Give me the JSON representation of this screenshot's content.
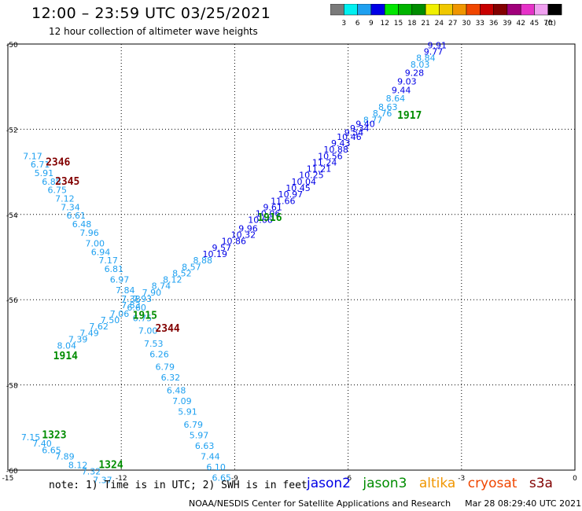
{
  "header": {
    "title": "12:00 – 23:59 UTC 03/25/2021",
    "subtitle": "12 hour collection of altimeter wave heights"
  },
  "colorbar": {
    "labels": [
      "3",
      "6",
      "9",
      "12",
      "15",
      "18",
      "21",
      "24",
      "27",
      "30",
      "33",
      "36",
      "39",
      "42",
      "45",
      "70"
    ],
    "unit": "(ft)",
    "colors": [
      "#7a7a7a",
      "#00f0f0",
      "#1ea0f0",
      "#0000e6",
      "#00e600",
      "#00b400",
      "#008c00",
      "#f0f000",
      "#f0c800",
      "#f09600",
      "#f04600",
      "#c80000",
      "#820000",
      "#a0007a",
      "#e632c8",
      "#f0a0f0",
      "#000000"
    ]
  },
  "map": {
    "lon_ticks": [
      "-15",
      "-12",
      "-9",
      "-6",
      "-3",
      "0"
    ],
    "lat_ticks": [
      "-50",
      "-52",
      "-54",
      "-56",
      "-58",
      "-60"
    ],
    "lon_range": [
      -15,
      0
    ],
    "lat_range": [
      -60,
      -50
    ],
    "grid": "dotted",
    "wave_points": [
      {
        "lon": -3.9,
        "lat": -50.1,
        "v": "9.91",
        "c": "#0000e6"
      },
      {
        "lon": -4.0,
        "lat": -50.25,
        "v": "9.77",
        "c": "#0000e6"
      },
      {
        "lon": -4.2,
        "lat": -50.4,
        "v": "8.84",
        "c": "#1ea0f0"
      },
      {
        "lon": -4.35,
        "lat": -50.55,
        "v": "8.03",
        "c": "#1ea0f0"
      },
      {
        "lon": -4.5,
        "lat": -50.75,
        "v": "9.28",
        "c": "#0000e6"
      },
      {
        "lon": -4.7,
        "lat": -50.95,
        "v": "9.03",
        "c": "#0000e6"
      },
      {
        "lon": -4.85,
        "lat": -51.15,
        "v": "9.44",
        "c": "#0000e6"
      },
      {
        "lon": -5.0,
        "lat": -51.35,
        "v": "8.64",
        "c": "#1ea0f0"
      },
      {
        "lon": -5.2,
        "lat": -51.55,
        "v": "8.63",
        "c": "#1ea0f0"
      },
      {
        "lon": -5.35,
        "lat": -51.7,
        "v": "8.76",
        "c": "#1ea0f0"
      },
      {
        "lon": -5.6,
        "lat": -51.85,
        "v": "8.77",
        "c": "#1ea0f0"
      },
      {
        "lon": -5.8,
        "lat": -51.95,
        "v": "9.40",
        "c": "#0000e6"
      },
      {
        "lon": -5.95,
        "lat": -52.05,
        "v": "9.34",
        "c": "#0000e6"
      },
      {
        "lon": -6.1,
        "lat": -52.15,
        "v": "9.54",
        "c": "#0000e6"
      },
      {
        "lon": -6.3,
        "lat": -52.25,
        "v": "10.46",
        "c": "#0000e6"
      },
      {
        "lon": -6.45,
        "lat": -52.4,
        "v": "9.43",
        "c": "#0000e6"
      },
      {
        "lon": -6.65,
        "lat": -52.55,
        "v": "10.88",
        "c": "#0000e6"
      },
      {
        "lon": -6.8,
        "lat": -52.7,
        "v": "10.56",
        "c": "#0000e6"
      },
      {
        "lon": -6.95,
        "lat": -52.85,
        "v": "11.24",
        "c": "#0000e6"
      },
      {
        "lon": -7.1,
        "lat": -53.0,
        "v": "11.21",
        "c": "#0000e6"
      },
      {
        "lon": -7.3,
        "lat": -53.15,
        "v": "10.25",
        "c": "#0000e6"
      },
      {
        "lon": -7.5,
        "lat": -53.3,
        "v": "10.04",
        "c": "#0000e6"
      },
      {
        "lon": -7.65,
        "lat": -53.45,
        "v": "10.45",
        "c": "#0000e6"
      },
      {
        "lon": -7.85,
        "lat": -53.6,
        "v": "10.97",
        "c": "#0000e6"
      },
      {
        "lon": -8.05,
        "lat": -53.75,
        "v": "11.66",
        "c": "#0000e6"
      },
      {
        "lon": -8.25,
        "lat": -53.9,
        "v": "9.61",
        "c": "#0000e6"
      },
      {
        "lon": -8.45,
        "lat": -54.05,
        "v": "10.06",
        "c": "#0000e6"
      },
      {
        "lon": -8.65,
        "lat": -54.2,
        "v": "10.66",
        "c": "#0000e6"
      },
      {
        "lon": -8.9,
        "lat": -54.4,
        "v": "9.96",
        "c": "#0000e6"
      },
      {
        "lon": -9.1,
        "lat": -54.55,
        "v": "10.32",
        "c": "#0000e6"
      },
      {
        "lon": -9.35,
        "lat": -54.7,
        "v": "10.86",
        "c": "#0000e6"
      },
      {
        "lon": -9.6,
        "lat": -54.85,
        "v": "9.57",
        "c": "#0000e6"
      },
      {
        "lon": -9.85,
        "lat": -55.0,
        "v": "10.19",
        "c": "#0000e6"
      },
      {
        "lon": -10.1,
        "lat": -55.15,
        "v": "8.88",
        "c": "#1ea0f0"
      },
      {
        "lon": -10.4,
        "lat": -55.3,
        "v": "8.57",
        "c": "#1ea0f0"
      },
      {
        "lon": -10.65,
        "lat": -55.45,
        "v": "8.52",
        "c": "#1ea0f0"
      },
      {
        "lon": -10.9,
        "lat": -55.6,
        "v": "8.12",
        "c": "#1ea0f0"
      },
      {
        "lon": -11.2,
        "lat": -55.75,
        "v": "8.74",
        "c": "#1ea0f0"
      },
      {
        "lon": -11.45,
        "lat": -55.9,
        "v": "7.90",
        "c": "#1ea0f0"
      },
      {
        "lon": -11.7,
        "lat": -56.05,
        "v": "7.93",
        "c": "#1ea0f0"
      },
      {
        "lon": -12.0,
        "lat": -56.2,
        "v": "7.83",
        "c": "#1ea0f0"
      },
      {
        "lon": -12.3,
        "lat": -56.4,
        "v": "7.06",
        "c": "#1ea0f0"
      },
      {
        "lon": -12.55,
        "lat": -56.55,
        "v": "7.50",
        "c": "#1ea0f0"
      },
      {
        "lon": -12.85,
        "lat": -56.7,
        "v": "7.62",
        "c": "#1ea0f0"
      },
      {
        "lon": -13.1,
        "lat": -56.85,
        "v": "7.49",
        "c": "#1ea0f0"
      },
      {
        "lon": -13.4,
        "lat": -57.0,
        "v": "7.39",
        "c": "#1ea0f0"
      },
      {
        "lon": -13.7,
        "lat": -57.15,
        "v": "8.04",
        "c": "#1ea0f0"
      },
      {
        "lon": -14.6,
        "lat": -52.7,
        "v": "7.17",
        "c": "#1ea0f0"
      },
      {
        "lon": -14.4,
        "lat": -52.9,
        "v": "6.71",
        "c": "#1ea0f0"
      },
      {
        "lon": -14.3,
        "lat": -53.1,
        "v": "5.91",
        "c": "#1ea0f0"
      },
      {
        "lon": -14.1,
        "lat": -53.3,
        "v": "6.88",
        "c": "#1ea0f0"
      },
      {
        "lon": -13.95,
        "lat": -53.5,
        "v": "6.75",
        "c": "#1ea0f0"
      },
      {
        "lon": -13.75,
        "lat": -53.7,
        "v": "7.12",
        "c": "#1ea0f0"
      },
      {
        "lon": -13.6,
        "lat": -53.9,
        "v": "7.34",
        "c": "#1ea0f0"
      },
      {
        "lon": -13.45,
        "lat": -54.1,
        "v": "6.61",
        "c": "#1ea0f0"
      },
      {
        "lon": -13.3,
        "lat": -54.3,
        "v": "6.48",
        "c": "#1ea0f0"
      },
      {
        "lon": -13.1,
        "lat": -54.5,
        "v": "7.96",
        "c": "#1ea0f0"
      },
      {
        "lon": -12.95,
        "lat": -54.75,
        "v": "7.00",
        "c": "#1ea0f0"
      },
      {
        "lon": -12.8,
        "lat": -54.95,
        "v": "6.94",
        "c": "#1ea0f0"
      },
      {
        "lon": -12.6,
        "lat": -55.15,
        "v": "7.17",
        "c": "#1ea0f0"
      },
      {
        "lon": -12.45,
        "lat": -55.35,
        "v": "6.81",
        "c": "#1ea0f0"
      },
      {
        "lon": -12.3,
        "lat": -55.6,
        "v": "6.97",
        "c": "#1ea0f0"
      },
      {
        "lon": -12.15,
        "lat": -55.85,
        "v": "7.84",
        "c": "#1ea0f0"
      },
      {
        "lon": -12.0,
        "lat": -56.05,
        "v": "7.38",
        "c": "#1ea0f0"
      },
      {
        "lon": -11.85,
        "lat": -56.25,
        "v": "6.60",
        "c": "#1ea0f0"
      },
      {
        "lon": -11.7,
        "lat": -56.5,
        "v": "6.75",
        "c": "#1ea0f0"
      },
      {
        "lon": -11.55,
        "lat": -56.8,
        "v": "7.00",
        "c": "#1ea0f0"
      },
      {
        "lon": -11.4,
        "lat": -57.1,
        "v": "7.53",
        "c": "#1ea0f0"
      },
      {
        "lon": -11.25,
        "lat": -57.35,
        "v": "6.26",
        "c": "#1ea0f0"
      },
      {
        "lon": -11.1,
        "lat": -57.65,
        "v": "6.79",
        "c": "#1ea0f0"
      },
      {
        "lon": -10.95,
        "lat": -57.9,
        "v": "6.32",
        "c": "#1ea0f0"
      },
      {
        "lon": -10.8,
        "lat": -58.2,
        "v": "6.48",
        "c": "#1ea0f0"
      },
      {
        "lon": -10.65,
        "lat": -58.45,
        "v": "7.09",
        "c": "#1ea0f0"
      },
      {
        "lon": -10.5,
        "lat": -58.7,
        "v": "5.91",
        "c": "#1ea0f0"
      },
      {
        "lon": -10.35,
        "lat": -59.0,
        "v": "6.79",
        "c": "#1ea0f0"
      },
      {
        "lon": -10.2,
        "lat": -59.25,
        "v": "5.97",
        "c": "#1ea0f0"
      },
      {
        "lon": -10.05,
        "lat": -59.5,
        "v": "6.63",
        "c": "#1ea0f0"
      },
      {
        "lon": -9.9,
        "lat": -59.75,
        "v": "7.44",
        "c": "#1ea0f0"
      },
      {
        "lon": -9.75,
        "lat": -60.0,
        "v": "6.10",
        "c": "#1ea0f0"
      },
      {
        "lon": -9.6,
        "lat": -60.25,
        "v": "6.65",
        "c": "#1ea0f0"
      },
      {
        "lon": -14.65,
        "lat": -59.3,
        "v": "7.15",
        "c": "#1ea0f0"
      },
      {
        "lon": -14.35,
        "lat": -59.45,
        "v": "7.40",
        "c": "#1ea0f0"
      },
      {
        "lon": -14.1,
        "lat": -59.6,
        "v": "6.65",
        "c": "#1ea0f0"
      },
      {
        "lon": -13.75,
        "lat": -59.75,
        "v": "7.89",
        "c": "#1ea0f0"
      },
      {
        "lon": -13.4,
        "lat": -59.95,
        "v": "8.12",
        "c": "#1ea0f0"
      },
      {
        "lon": -13.05,
        "lat": -60.1,
        "v": "7.32",
        "c": "#1ea0f0"
      },
      {
        "lon": -12.75,
        "lat": -60.3,
        "v": "7.37",
        "c": "#1ea0f0"
      }
    ],
    "time_labels": [
      {
        "lon": -4.7,
        "lat": -51.75,
        "t": "1917",
        "c": "#008c00"
      },
      {
        "lon": -8.4,
        "lat": -54.15,
        "t": "1916",
        "c": "#008c00"
      },
      {
        "lon": -11.7,
        "lat": -56.45,
        "t": "1915",
        "c": "#008c00"
      },
      {
        "lon": -13.8,
        "lat": -57.4,
        "t": "1914",
        "c": "#008c00"
      },
      {
        "lon": -14.0,
        "lat": -52.85,
        "t": "2346",
        "c": "#820000"
      },
      {
        "lon": -13.75,
        "lat": -53.3,
        "t": "2345",
        "c": "#820000"
      },
      {
        "lon": -11.1,
        "lat": -56.75,
        "t": "2344",
        "c": "#820000"
      },
      {
        "lon": -14.1,
        "lat": -59.25,
        "t": "1323",
        "c": "#008c00"
      },
      {
        "lon": -12.6,
        "lat": -59.95,
        "t": "1324",
        "c": "#008c00"
      }
    ]
  },
  "footer": {
    "note": "note: 1) Time is in UTC; 2) SWH is in feet",
    "satellites": [
      {
        "name": "jason2",
        "color": "#0000e6"
      },
      {
        "name": "jason3",
        "color": "#008c00"
      },
      {
        "name": "altika",
        "color": "#f09600"
      },
      {
        "name": "cryosat",
        "color": "#f04600"
      },
      {
        "name": "s3a",
        "color": "#820000"
      }
    ],
    "credit": "NOAA/NESDIS Center for Satellite Applications and Research",
    "timestamp": "Mar 28 08:29:40 UTC 2021"
  }
}
